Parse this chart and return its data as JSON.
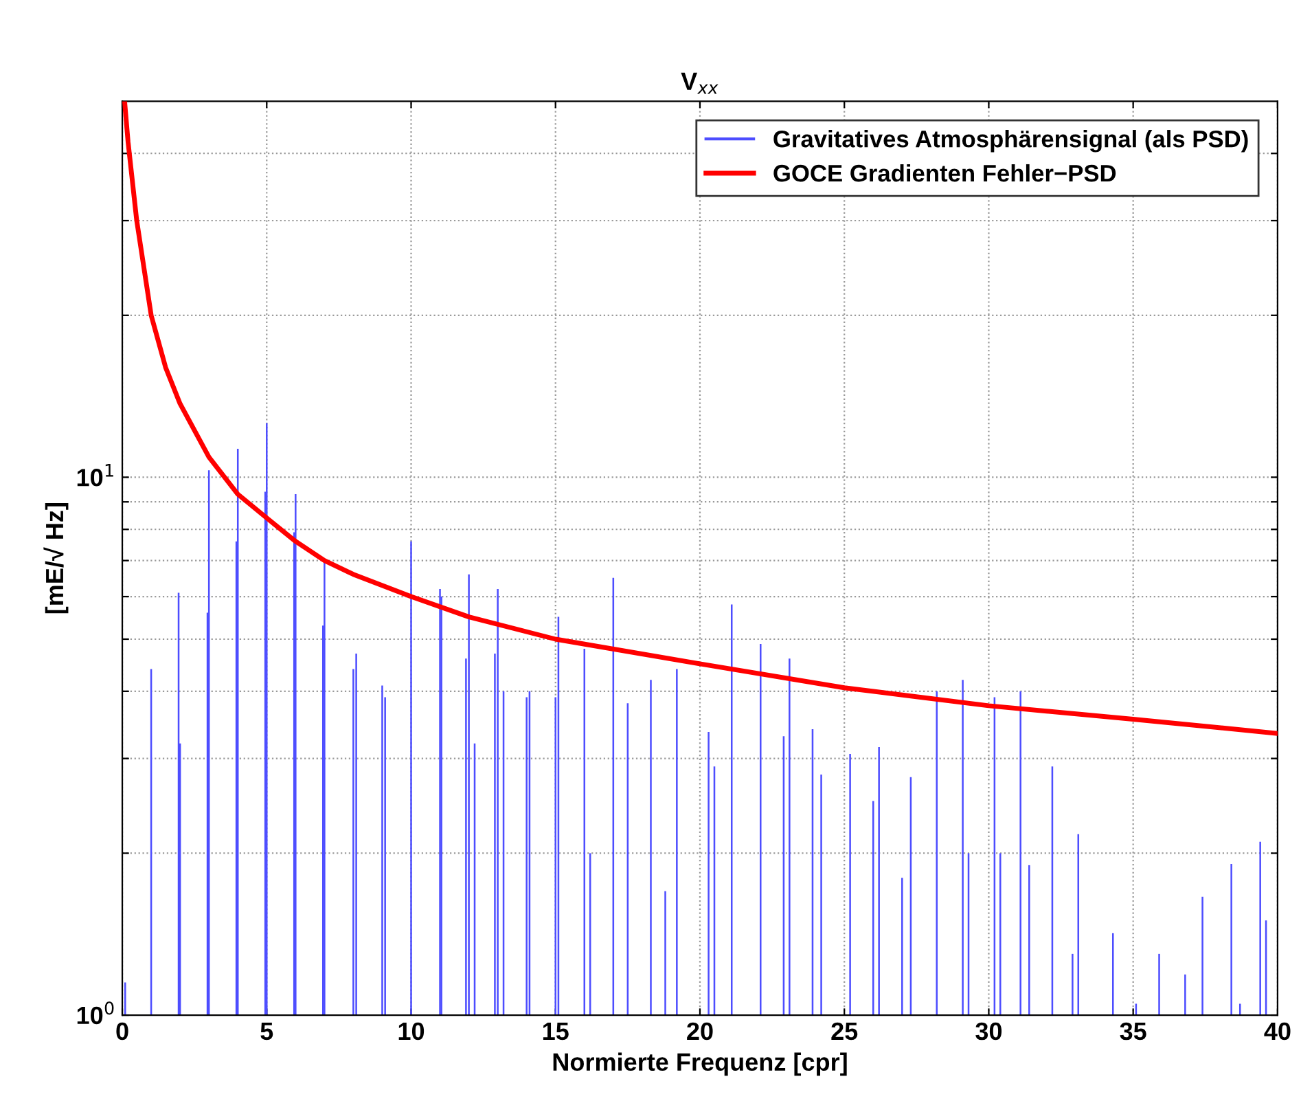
{
  "chart_data": {
    "type": "bar",
    "title": "V$_{xx}$",
    "xlabel": "Normierte Frequenz [cpr]",
    "ylabel": "[mE/√ Hz]",
    "log": "y",
    "grid": true,
    "legend": "top right",
    "xlim": [
      0,
      40
    ],
    "ylim": [
      1,
      50
    ],
    "xticks": [
      0,
      5,
      10,
      15,
      20,
      25,
      30,
      35,
      40
    ],
    "yticks": [
      {
        "value": 1,
        "label": "10$^{0}$"
      },
      {
        "value": 2,
        "label": null
      },
      {
        "value": 3,
        "label": null
      },
      {
        "value": 4,
        "label": null
      },
      {
        "value": 5,
        "label": null
      },
      {
        "value": 6,
        "label": null
      },
      {
        "value": 7,
        "label": null
      },
      {
        "value": 8,
        "label": null
      },
      {
        "value": 9,
        "label": null
      },
      {
        "value": 10,
        "label": "10$^{1}$"
      },
      {
        "value": 20,
        "label": null
      },
      {
        "value": 30,
        "label": null
      },
      {
        "value": 40,
        "label": null
      }
    ],
    "series": [
      {
        "name": "Gravitatives Atmosphärensignal (als PSD)",
        "color": "#4d4dff",
        "x": [
          0.1,
          1.0,
          1.95,
          2.0,
          2.95,
          3.0,
          3.95,
          4.0,
          4.95,
          5.0,
          5.95,
          6.0,
          6.95,
          7.0,
          8.0,
          8.1,
          9.0,
          9.1,
          10.0,
          11.0,
          11.05,
          11.9,
          12.0,
          12.2,
          12.9,
          13.0,
          13.2,
          14.0,
          14.1,
          15.0,
          15.1,
          16.0,
          16.2,
          17.0,
          17.5,
          18.3,
          18.8,
          19.2,
          20.3,
          20.5,
          21.1,
          22.1,
          22.9,
          23.1,
          23.9,
          24.2,
          25.2,
          26.0,
          26.2,
          27.0,
          27.3,
          28.2,
          29.1,
          29.3,
          30.2,
          30.4,
          31.1,
          31.4,
          32.2,
          32.9,
          33.1,
          34.3,
          35.1,
          35.9,
          36.8,
          37.4,
          38.4,
          38.7,
          39.4,
          39.6
        ],
        "values": [
          1.15,
          4.4,
          6.1,
          3.2,
          5.6,
          10.3,
          7.6,
          11.3,
          9.4,
          12.6,
          7.9,
          9.3,
          5.3,
          7.0,
          4.4,
          4.7,
          4.1,
          3.9,
          7.6,
          6.2,
          6.0,
          4.6,
          6.6,
          3.2,
          4.7,
          6.2,
          4.0,
          3.9,
          4.0,
          3.9,
          5.5,
          4.8,
          2.0,
          6.5,
          3.8,
          4.2,
          1.7,
          4.4,
          3.36,
          2.9,
          5.8,
          4.9,
          3.3,
          4.6,
          3.4,
          2.8,
          3.06,
          2.5,
          3.15,
          1.8,
          2.77,
          4.0,
          4.2,
          2.0,
          3.9,
          2.0,
          4.0,
          1.9,
          2.9,
          1.3,
          2.17,
          1.42,
          1.05,
          1.3,
          1.19,
          1.66,
          1.91,
          1.05,
          2.1,
          1.5
        ]
      },
      {
        "name": "GOCE Gradienten Fehler−PSD",
        "type": "line",
        "color": "#ff0000",
        "line_style": "solid",
        "x": [
          0.08,
          0.2,
          0.5,
          1,
          1.5,
          2,
          3,
          4,
          5,
          6,
          7,
          8,
          10,
          12,
          15,
          20,
          25,
          30,
          35,
          40
        ],
        "values": [
          50,
          42,
          30,
          20,
          16,
          13.7,
          10.9,
          9.3,
          8.4,
          7.6,
          7.0,
          6.6,
          6.0,
          5.5,
          5.0,
          4.5,
          4.06,
          3.76,
          3.55,
          3.34
        ]
      }
    ]
  }
}
